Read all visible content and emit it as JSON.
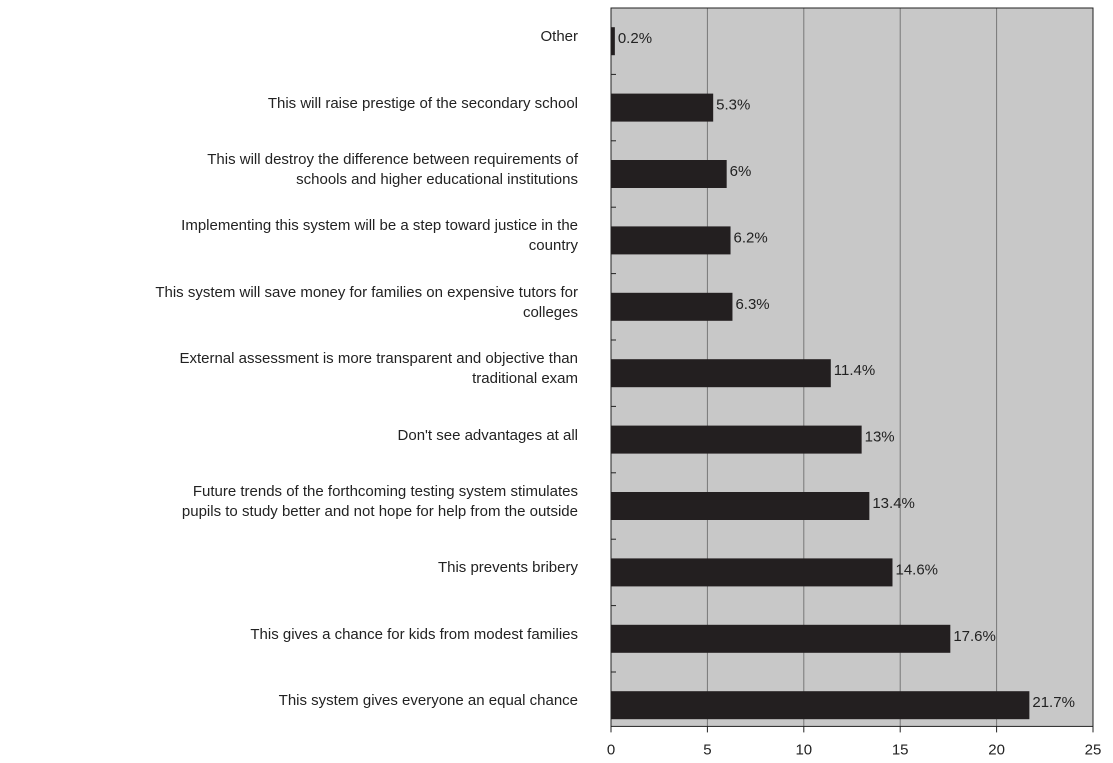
{
  "chart_data": {
    "type": "bar",
    "orientation": "horizontal",
    "categories": [
      "Other",
      "This will raise prestige of the secondary school",
      "This will destroy the difference between requirements of\nschools and higher educational institutions",
      "Implementing this system will be a step toward justice in the\ncountry",
      "This system will save money for families on expensive tutors for\ncolleges",
      "External assessment is more transparent and objective than\ntraditional exam",
      "Don't see advantages at all",
      "Future trends of the forthcoming testing system stimulates\npupils to study better and not hope for help from the outside",
      "This prevents bribery",
      "This gives a chance for kids from modest families",
      "This system gives everyone an equal chance"
    ],
    "values": [
      0.2,
      5.3,
      6,
      6.2,
      6.3,
      11.4,
      13,
      13.4,
      14.6,
      17.6,
      21.7
    ],
    "value_labels": [
      "0.2%",
      "5.3%",
      "6%",
      "6.2%",
      "6.3%",
      "11.4%",
      "13%",
      "13.4%",
      "14.6%",
      "17.6%",
      "21.7%"
    ],
    "color": "#231f20",
    "background": "#c8c8c8",
    "xlim": [
      0,
      25
    ],
    "xticks": [
      0,
      5,
      10,
      15,
      20,
      25
    ],
    "grid": true
  }
}
